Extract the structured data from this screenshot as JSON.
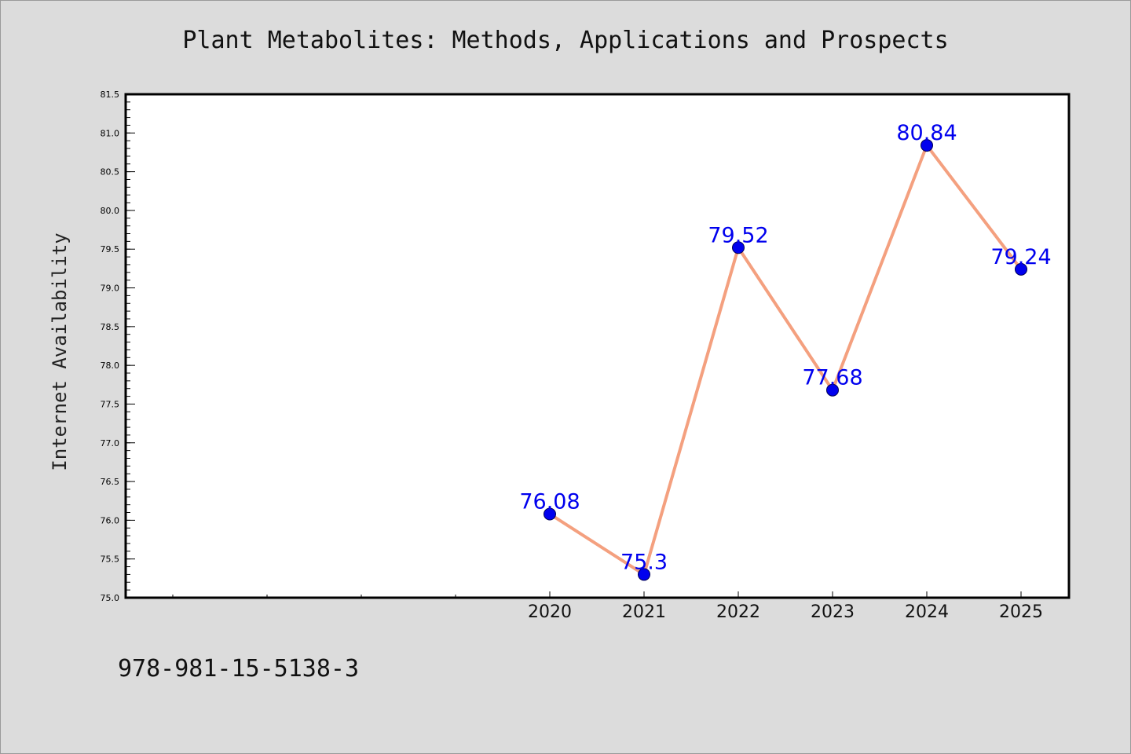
{
  "chart_data": {
    "type": "line",
    "title": "Plant Metabolites: Methods, Applications and Prospects",
    "xlabel": "",
    "ylabel": "Internet Availability",
    "categories": [
      "2020",
      "2021",
      "2022",
      "2023",
      "2024",
      "2025"
    ],
    "series": [
      {
        "values": [
          76.08,
          75.3,
          79.52,
          77.68,
          80.84,
          79.24
        ],
        "labels": [
          "76.08",
          "75.3",
          "79.52",
          "77.68",
          "80.84",
          "79.24"
        ]
      }
    ],
    "ylim": [
      75.0,
      81.5
    ],
    "yticks": [
      "75.0",
      "75.5",
      "76.0",
      "76.5",
      "77.0",
      "77.5",
      "78.0",
      "78.5",
      "79.0",
      "79.5",
      "80.0",
      "80.5",
      "81.0",
      "81.5"
    ],
    "grid": false,
    "legend": "none",
    "colors": {
      "line": "#f4a07f",
      "marker": "#0000ee",
      "label": "#0000ee",
      "axis": "#000000",
      "plot_bg": "#ffffff",
      "page_bg": "#dcdcdc"
    }
  },
  "footer": {
    "code": "978-981-15-5138-3"
  }
}
